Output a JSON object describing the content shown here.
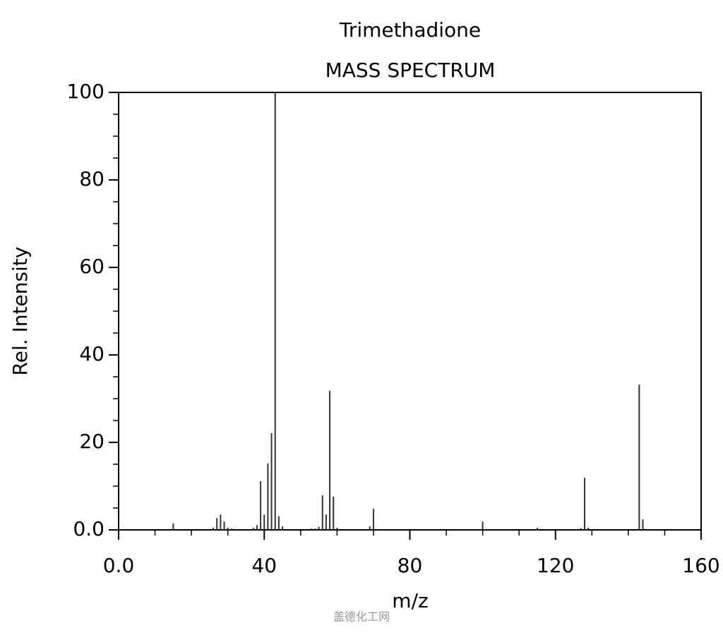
{
  "chart_data": {
    "type": "stem",
    "title": "Trimethadione",
    "subtitle": "MASS SPECTRUM",
    "x_label": "m/z",
    "y_label": "Rel. Intensity",
    "watermark": "盖德化工网",
    "x": [
      15,
      26,
      27,
      28,
      29,
      30,
      31,
      37,
      38,
      39,
      40,
      41,
      42,
      43,
      44,
      45,
      53,
      54,
      55,
      56,
      57,
      58,
      59,
      60,
      69,
      70,
      100,
      115,
      127,
      128,
      129,
      143,
      144
    ],
    "values": [
      1.5,
      0.5,
      2.7,
      3.5,
      1.9,
      0.5,
      0.3,
      0.5,
      1.1,
      11.1,
      3.5,
      15.2,
      22.1,
      100,
      3.1,
      0.8,
      0.3,
      0.3,
      0.7,
      7.9,
      3.5,
      31.8,
      7.6,
      0.5,
      0.8,
      4.8,
      1.9,
      0.5,
      0.4,
      11.9,
      0.5,
      33.2,
      2.4
    ],
    "color": "#333333",
    "xlim": [
      0,
      160
    ],
    "xticks": [
      {
        "value": 0,
        "label": "0.0"
      },
      40,
      80,
      120,
      160
    ],
    "x_minor_ticks": [
      10,
      20,
      30,
      50,
      60,
      70,
      90,
      100,
      110,
      130,
      140,
      150
    ],
    "ylim": [
      0,
      100
    ],
    "yticks": [
      {
        "value": 0,
        "label": "0.0"
      },
      20,
      40,
      60,
      80,
      100
    ],
    "y_minor_ticks": [
      5,
      10,
      15,
      25,
      30,
      35,
      45,
      50,
      55,
      65,
      70,
      75,
      85,
      90,
      95
    ]
  }
}
